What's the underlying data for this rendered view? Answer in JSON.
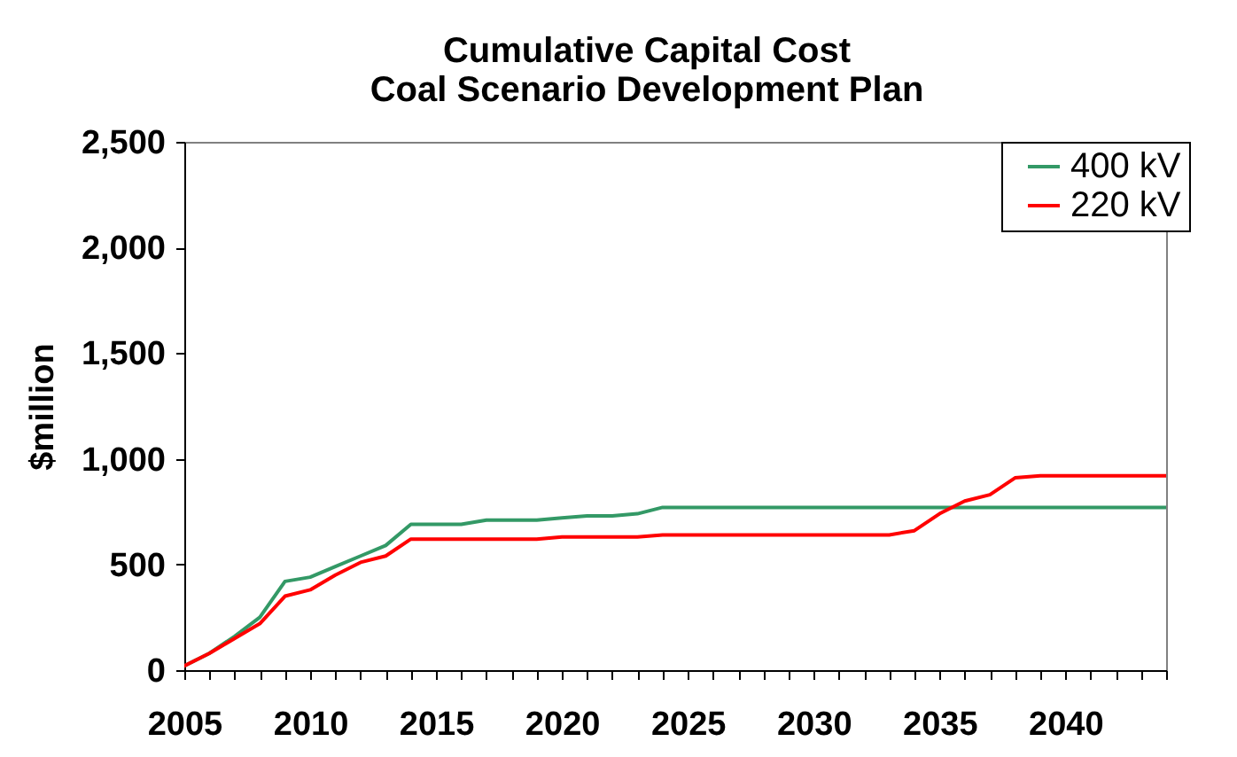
{
  "chart_data": {
    "type": "line",
    "title": "Cumulative Capital Cost",
    "subtitle": "Coal Scenario Development Plan",
    "ylabel": "$million",
    "x": [
      2005,
      2006,
      2007,
      2008,
      2009,
      2010,
      2011,
      2012,
      2013,
      2014,
      2015,
      2016,
      2017,
      2018,
      2019,
      2020,
      2021,
      2022,
      2023,
      2024,
      2025,
      2026,
      2027,
      2028,
      2029,
      2030,
      2031,
      2032,
      2033,
      2034,
      2035,
      2036,
      2037,
      2038,
      2039,
      2040,
      2041,
      2042,
      2043,
      2044
    ],
    "series": [
      {
        "name": "400 kV",
        "color": "#339966",
        "values": [
          20,
          80,
          160,
          250,
          420,
          440,
          490,
          540,
          590,
          690,
          690,
          690,
          710,
          710,
          710,
          720,
          730,
          730,
          740,
          770,
          770,
          770,
          770,
          770,
          770,
          770,
          770,
          770,
          770,
          770,
          770,
          770,
          770,
          770,
          770,
          770,
          770,
          770,
          770,
          770
        ]
      },
      {
        "name": "220 kV",
        "color": "#ff0000",
        "values": [
          20,
          80,
          150,
          220,
          350,
          380,
          450,
          510,
          540,
          620,
          620,
          620,
          620,
          620,
          620,
          630,
          630,
          630,
          630,
          640,
          640,
          640,
          640,
          640,
          640,
          640,
          640,
          640,
          640,
          660,
          740,
          800,
          830,
          910,
          920,
          920,
          920,
          920,
          920,
          920
        ]
      }
    ],
    "xlim": [
      2005,
      2044
    ],
    "xticks": [
      2005,
      {
        "value": 2006,
        "label": null
      },
      {
        "value": 2007,
        "label": null
      },
      {
        "value": 2008,
        "label": null
      },
      {
        "value": 2009,
        "label": null
      },
      2010,
      {
        "value": 2011,
        "label": null
      },
      {
        "value": 2012,
        "label": null
      },
      {
        "value": 2013,
        "label": null
      },
      {
        "value": 2014,
        "label": null
      },
      2015,
      {
        "value": 2016,
        "label": null
      },
      {
        "value": 2017,
        "label": null
      },
      {
        "value": 2018,
        "label": null
      },
      {
        "value": 2019,
        "label": null
      },
      2020,
      {
        "value": 2021,
        "label": null
      },
      {
        "value": 2022,
        "label": null
      },
      {
        "value": 2023,
        "label": null
      },
      {
        "value": 2024,
        "label": null
      },
      2025,
      {
        "value": 2026,
        "label": null
      },
      {
        "value": 2027,
        "label": null
      },
      {
        "value": 2028,
        "label": null
      },
      {
        "value": 2029,
        "label": null
      },
      2030,
      {
        "value": 2031,
        "label": null
      },
      {
        "value": 2032,
        "label": null
      },
      {
        "value": 2033,
        "label": null
      },
      {
        "value": 2034,
        "label": null
      },
      2035,
      {
        "value": 2036,
        "label": null
      },
      {
        "value": 2037,
        "label": null
      },
      {
        "value": 2038,
        "label": null
      },
      {
        "value": 2039,
        "label": null
      },
      2040,
      {
        "value": 2041,
        "label": null
      },
      {
        "value": 2042,
        "label": null
      },
      {
        "value": 2043,
        "label": null
      },
      {
        "value": 2044,
        "label": null
      }
    ],
    "ylim": [
      0,
      2500
    ],
    "yticks": [
      0,
      500,
      {
        "value": 1000,
        "label": "1,000"
      },
      {
        "value": 1500,
        "label": "1,500"
      },
      {
        "value": 2000,
        "label": "2,000"
      },
      {
        "value": 2500,
        "label": "2,500"
      }
    ],
    "grid": false,
    "legend": "top right"
  }
}
